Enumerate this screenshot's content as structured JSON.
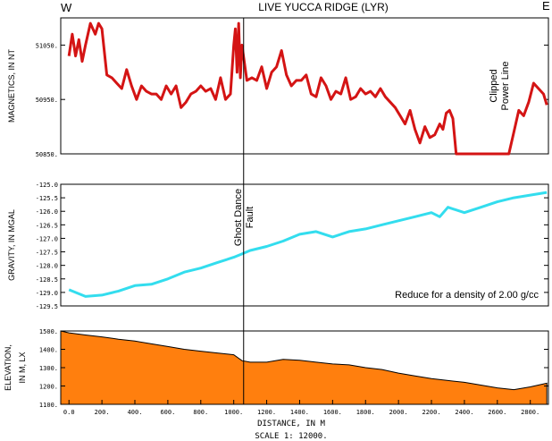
{
  "header": {
    "title": "LIVE YUCCA RIDGE (LYR)",
    "west": "W",
    "east": "E"
  },
  "colors": {
    "magnetics": "#d41414",
    "gravity": "#33ddee",
    "elevation_fill": "#ff7f0e",
    "axis": "#000000"
  },
  "chart_data": [
    {
      "type": "line",
      "name": "magnetics",
      "ylabel": "MAGNETICS, IN NT",
      "ylim": [
        50850,
        51100
      ],
      "yticks": [
        50850,
        50950,
        51050
      ],
      "ytick_labels": [
        "50850.",
        "50950.",
        "51050."
      ],
      "annotation": "Clipped\nPower Line",
      "x": [
        0,
        20,
        40,
        60,
        80,
        100,
        130,
        160,
        180,
        200,
        230,
        260,
        290,
        320,
        350,
        380,
        410,
        440,
        470,
        500,
        530,
        560,
        590,
        620,
        650,
        680,
        710,
        740,
        770,
        800,
        830,
        860,
        890,
        920,
        950,
        980,
        1000,
        1010,
        1020,
        1030,
        1040,
        1050,
        1080,
        1110,
        1140,
        1170,
        1200,
        1230,
        1260,
        1290,
        1320,
        1350,
        1380,
        1410,
        1440,
        1470,
        1500,
        1530,
        1560,
        1590,
        1620,
        1650,
        1680,
        1710,
        1740,
        1770,
        1800,
        1830,
        1860,
        1890,
        1920,
        1950,
        1980,
        2010,
        2040,
        2070,
        2100,
        2130,
        2160,
        2190,
        2220,
        2250,
        2270,
        2290,
        2310,
        2330,
        2350,
        2400,
        2450,
        2500,
        2550,
        2600,
        2640,
        2670,
        2700,
        2730,
        2760,
        2790,
        2820,
        2850,
        2880,
        2900
      ],
      "y": [
        51030,
        51070,
        51030,
        51060,
        51020,
        51050,
        51090,
        51070,
        51090,
        51080,
        50995,
        50990,
        50980,
        50970,
        51005,
        50975,
        50950,
        50975,
        50965,
        50960,
        50960,
        50950,
        50975,
        50960,
        50975,
        50935,
        50945,
        50960,
        50965,
        50975,
        50965,
        50970,
        50950,
        50990,
        50950,
        50960,
        51050,
        51080,
        51000,
        51090,
        50990,
        51050,
        50985,
        50990,
        50985,
        51010,
        50970,
        51000,
        51010,
        51040,
        50995,
        50975,
        50985,
        50985,
        50995,
        50960,
        50955,
        50990,
        50975,
        50950,
        50965,
        50960,
        50990,
        50950,
        50955,
        50970,
        50960,
        50965,
        50955,
        50970,
        50955,
        50945,
        50935,
        50920,
        50905,
        50930,
        50895,
        50870,
        50900,
        50880,
        50885,
        50905,
        50895,
        50925,
        50930,
        50915,
        50850,
        50850,
        50850,
        50850,
        50850,
        50850,
        50850,
        50850,
        50890,
        50930,
        50920,
        50945,
        50980,
        50970,
        50960,
        50940
      ]
    },
    {
      "type": "line",
      "name": "gravity",
      "ylabel": "GRAVITY, IN MGAL",
      "ylim": [
        -129.5,
        -125.0
      ],
      "yticks": [
        -129.5,
        -129.0,
        -128.5,
        -128.0,
        -127.5,
        -127.0,
        -126.5,
        -126.0,
        -125.5,
        -125.0
      ],
      "ytick_labels": [
        "-129.5",
        "-129.0",
        "-128.5",
        "-128.0",
        "-127.5",
        "-127.0",
        "-126.5",
        "-126.0",
        "-125.5",
        "-125.0"
      ],
      "annotation": "Reduce for a density of 2.00 g/cc",
      "x": [
        0,
        100,
        200,
        300,
        400,
        500,
        600,
        700,
        800,
        900,
        1000,
        1040,
        1100,
        1200,
        1300,
        1400,
        1500,
        1600,
        1700,
        1800,
        1900,
        2000,
        2100,
        2200,
        2250,
        2300,
        2400,
        2500,
        2600,
        2700,
        2800,
        2900
      ],
      "y": [
        -128.9,
        -129.15,
        -129.1,
        -128.95,
        -128.75,
        -128.7,
        -128.5,
        -128.25,
        -128.1,
        -127.9,
        -127.7,
        -127.6,
        -127.45,
        -127.3,
        -127.1,
        -126.85,
        -126.75,
        -126.95,
        -126.75,
        -126.65,
        -126.5,
        -126.35,
        -126.2,
        -126.05,
        -126.2,
        -125.85,
        -126.05,
        -125.85,
        -125.65,
        -125.5,
        -125.4,
        -125.3
      ]
    },
    {
      "type": "area",
      "name": "elevation",
      "ylabel": "ELEVATION,\nIN M, LX",
      "xlabel": "DISTANCE, IN M",
      "scale": "SCALE 1: 12000.",
      "ylim": [
        1100,
        1500
      ],
      "yticks": [
        1100,
        1200,
        1300,
        1400,
        1500
      ],
      "ytick_labels": [
        "1100.",
        "1200.",
        "1300.",
        "1400.",
        "1500."
      ],
      "xlim": [
        -50,
        2910
      ],
      "xticks": [
        0,
        200,
        400,
        600,
        800,
        1000,
        1200,
        1400,
        1600,
        1800,
        2000,
        2200,
        2400,
        2600,
        2800
      ],
      "xtick_labels": [
        "0.0",
        "200.",
        "400.",
        "600.",
        "800.",
        "1000.",
        "1200.",
        "1400.",
        "1600.",
        "1800.",
        "2000.",
        "2200.",
        "2400.",
        "2600.",
        "2800."
      ],
      "x": [
        -50,
        0,
        100,
        200,
        300,
        400,
        500,
        600,
        700,
        800,
        900,
        1000,
        1050,
        1100,
        1200,
        1300,
        1400,
        1500,
        1600,
        1700,
        1800,
        1900,
        2000,
        2100,
        2200,
        2300,
        2400,
        2500,
        2600,
        2700,
        2800,
        2900
      ],
      "y": [
        1500,
        1490,
        1478,
        1468,
        1455,
        1445,
        1430,
        1415,
        1400,
        1390,
        1380,
        1370,
        1338,
        1330,
        1330,
        1345,
        1340,
        1330,
        1320,
        1315,
        1300,
        1290,
        1270,
        1255,
        1240,
        1230,
        1220,
        1205,
        1190,
        1180,
        1195,
        1215
      ]
    }
  ],
  "fault": {
    "label_line1": "Ghost Dance",
    "label_line2": "Fault",
    "x": 1060
  }
}
